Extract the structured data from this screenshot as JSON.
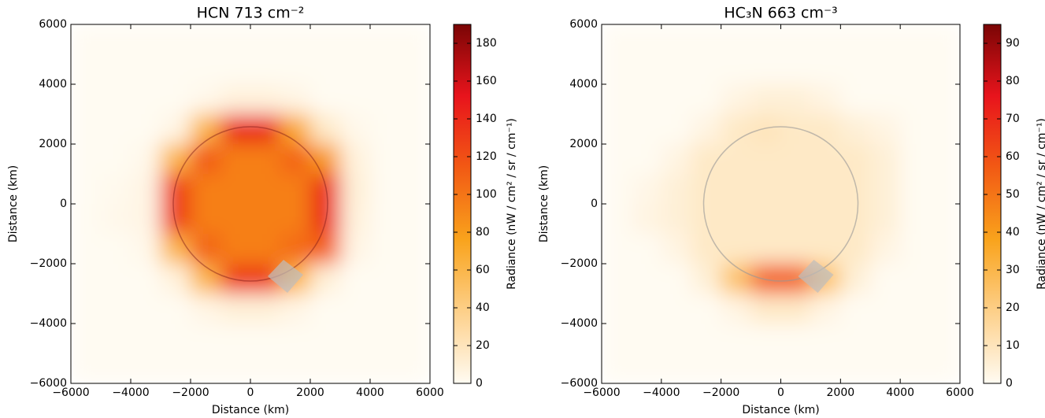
{
  "chart_data": [
    {
      "type": "heatmap",
      "title": "HCN 713 cm⁻²",
      "xlabel": "Distance (km)",
      "ylabel": "Distance (km)",
      "xlim": [
        -6000,
        6000
      ],
      "ylim": [
        -6000,
        6000
      ],
      "xticks": [
        {
          "value": -6000,
          "label": "−6000"
        },
        {
          "value": -4000,
          "label": "−4000"
        },
        {
          "value": -2000,
          "label": "−2000"
        },
        0,
        2000,
        4000,
        6000
      ],
      "yticks": [
        {
          "value": -6000,
          "label": "−6000"
        },
        {
          "value": -4000,
          "label": "−4000"
        },
        {
          "value": -2000,
          "label": "−2000"
        },
        0,
        2000,
        4000,
        6000
      ],
      "x": [
        -5500,
        -4500,
        -3500,
        -2500,
        -1500,
        -500,
        500,
        1500,
        2500,
        3500,
        4500,
        5500
      ],
      "y": [
        5500,
        4500,
        3500,
        2500,
        1500,
        500,
        -500,
        -1500,
        -2500,
        -3500,
        -4500,
        -5500
      ],
      "z": [
        [
          0,
          0,
          0,
          0,
          0,
          0,
          0,
          0,
          0,
          0,
          0,
          0
        ],
        [
          0,
          0,
          0,
          0,
          0,
          0,
          0,
          0,
          0,
          0,
          0,
          0
        ],
        [
          0,
          0,
          0,
          0,
          3,
          8,
          8,
          5,
          0,
          0,
          0,
          0
        ],
        [
          0,
          0,
          0,
          5,
          60,
          140,
          140,
          70,
          15,
          3,
          0,
          0
        ],
        [
          0,
          0,
          3,
          60,
          115,
          95,
          95,
          110,
          80,
          8,
          0,
          0
        ],
        [
          0,
          2,
          5,
          130,
          95,
          95,
          95,
          95,
          140,
          10,
          0,
          0
        ],
        [
          0,
          3,
          5,
          130,
          95,
          95,
          95,
          95,
          140,
          8,
          0,
          0
        ],
        [
          0,
          0,
          3,
          60,
          110,
          95,
          95,
          105,
          110,
          5,
          0,
          0
        ],
        [
          0,
          0,
          0,
          8,
          60,
          130,
          130,
          60,
          10,
          0,
          0,
          0
        ],
        [
          0,
          0,
          0,
          0,
          5,
          10,
          10,
          5,
          0,
          0,
          0,
          0
        ],
        [
          0,
          0,
          0,
          0,
          0,
          0,
          0,
          0,
          0,
          0,
          0,
          0
        ],
        [
          0,
          0,
          0,
          0,
          0,
          0,
          0,
          0,
          0,
          0,
          0,
          0
        ]
      ],
      "colormap": [
        "#fffbf2",
        "#fdd08a",
        "#f9a31c",
        "#f25a14",
        "#e8141c",
        "#7a0505"
      ],
      "colorbar": {
        "label": "Radiance (nW / cm² / sr / cm⁻¹)",
        "clim": [
          0,
          190
        ],
        "ticks": [
          0,
          20,
          40,
          60,
          80,
          100,
          120,
          140,
          160,
          180
        ]
      }
    },
    {
      "type": "heatmap",
      "title": "HC₃N 663 cm⁻³",
      "xlabel": "Distance (km)",
      "ylabel": "Distance (km)",
      "xlim": [
        -6000,
        6000
      ],
      "ylim": [
        -6000,
        6000
      ],
      "xticks": [
        {
          "value": -6000,
          "label": "−6000"
        },
        {
          "value": -4000,
          "label": "−4000"
        },
        {
          "value": -2000,
          "label": "−2000"
        },
        0,
        2000,
        4000,
        6000
      ],
      "yticks": [
        {
          "value": -6000,
          "label": "−6000"
        },
        {
          "value": -4000,
          "label": "−4000"
        },
        {
          "value": -2000,
          "label": "−2000"
        },
        0,
        2000,
        4000,
        6000
      ],
      "x": [
        -5500,
        -4500,
        -3500,
        -2500,
        -1500,
        -500,
        500,
        1500,
        2500,
        3500,
        4500,
        5500
      ],
      "y": [
        5500,
        4500,
        3500,
        2500,
        1500,
        500,
        -500,
        -1500,
        -2500,
        -3500,
        -4500,
        -5500
      ],
      "z": [
        [
          0,
          0,
          0,
          0,
          0,
          0,
          0,
          0,
          0,
          0,
          0,
          0
        ],
        [
          0,
          0,
          0,
          0,
          0,
          0,
          0,
          0,
          0,
          0,
          0,
          0
        ],
        [
          0,
          0,
          0,
          0,
          3,
          5,
          5,
          3,
          0,
          0,
          0,
          0
        ],
        [
          0,
          0,
          0,
          3,
          8,
          10,
          8,
          8,
          5,
          3,
          0,
          0
        ],
        [
          0,
          0,
          3,
          8,
          8,
          8,
          8,
          8,
          8,
          5,
          0,
          0
        ],
        [
          0,
          2,
          5,
          8,
          8,
          8,
          8,
          8,
          8,
          5,
          0,
          0
        ],
        [
          0,
          3,
          5,
          8,
          8,
          8,
          8,
          8,
          8,
          5,
          0,
          0
        ],
        [
          0,
          0,
          3,
          8,
          8,
          8,
          8,
          8,
          8,
          3,
          0,
          0
        ],
        [
          0,
          0,
          0,
          5,
          25,
          55,
          55,
          25,
          5,
          0,
          0,
          0
        ],
        [
          0,
          0,
          0,
          0,
          3,
          8,
          8,
          3,
          0,
          0,
          0,
          0
        ],
        [
          0,
          0,
          0,
          0,
          0,
          0,
          0,
          0,
          0,
          0,
          0,
          0
        ],
        [
          0,
          0,
          0,
          0,
          0,
          0,
          0,
          0,
          0,
          0,
          0,
          0
        ]
      ],
      "colormap": [
        "#fffbf2",
        "#fdd08a",
        "#f9a31c",
        "#f25a14",
        "#e8141c",
        "#7a0505"
      ],
      "colorbar": {
        "label": "Radiance (nW / cm² / sr / cm⁻¹)",
        "clim": [
          0,
          95
        ],
        "ticks": [
          0,
          10,
          20,
          30,
          40,
          50,
          60,
          70,
          80,
          90
        ]
      }
    }
  ]
}
